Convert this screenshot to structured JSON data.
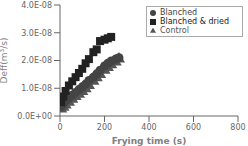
{
  "chart_data": {
    "type": "scatter",
    "xlabel": "Frying time (s)",
    "ylabel": "Deff(m³/s)",
    "xlim": [
      0,
      800
    ],
    "ylim": [
      0,
      4e-08
    ],
    "xticks": [
      0,
      200,
      400,
      600,
      800
    ],
    "yticks": [
      {
        "value": 0,
        "label": "0.0E+00"
      },
      {
        "value": 1e-08,
        "label": "1.0E-08"
      },
      {
        "value": 2e-08,
        "label": "2.0E-08"
      },
      {
        "value": 3e-08,
        "label": "3.0E-08"
      },
      {
        "value": 4e-08,
        "label": "4.0E-08"
      }
    ],
    "grid": false,
    "legend": "upper center",
    "series": [
      {
        "name": "Control",
        "color": "#555555",
        "marker": "triangle",
        "x": [
          5,
          15,
          25,
          40,
          55,
          70,
          85,
          100,
          115,
          130,
          150,
          165,
          180,
          200,
          215,
          230,
          250,
          265
        ],
        "values": [
          2.5e-09,
          3.2e-09,
          4e-09,
          5e-09,
          6e-09,
          7e-09,
          7.8e-09,
          8.8e-09,
          9.8e-09,
          1.1e-08,
          1.25e-08,
          1.38e-08,
          1.5e-08,
          1.65e-08,
          1.75e-08,
          1.85e-08,
          1.95e-08,
          2.05e-08
        ]
      },
      {
        "name": "Blanched",
        "color": "#444444",
        "marker": "circle",
        "x": [
          5,
          15,
          25,
          40,
          55,
          70,
          85,
          100,
          115,
          130,
          150,
          165,
          180,
          200,
          215,
          230,
          250,
          265
        ],
        "values": [
          3.5e-09,
          4.5e-09,
          5.5e-09,
          6.5e-09,
          7.5e-09,
          8.5e-09,
          9.5e-09,
          1.05e-08,
          1.15e-08,
          1.28e-08,
          1.4e-08,
          1.52e-08,
          1.65e-08,
          1.8e-08,
          1.9e-08,
          1.98e-08,
          2.05e-08,
          2.1e-08
        ]
      },
      {
        "name": "Blanched & dried",
        "color": "#222222",
        "marker": "square",
        "x": [
          5,
          15,
          25,
          40,
          55,
          70,
          85,
          100,
          115,
          130,
          150,
          165,
          180,
          200,
          215,
          230
        ],
        "values": [
          5e-09,
          7e-09,
          9e-09,
          1.1e-08,
          1.25e-08,
          1.4e-08,
          1.55e-08,
          1.7e-08,
          1.9e-08,
          2.05e-08,
          2.3e-08,
          2.4e-08,
          2.7e-08,
          2.75e-08,
          2.8e-08,
          2.85e-08
        ]
      }
    ]
  }
}
